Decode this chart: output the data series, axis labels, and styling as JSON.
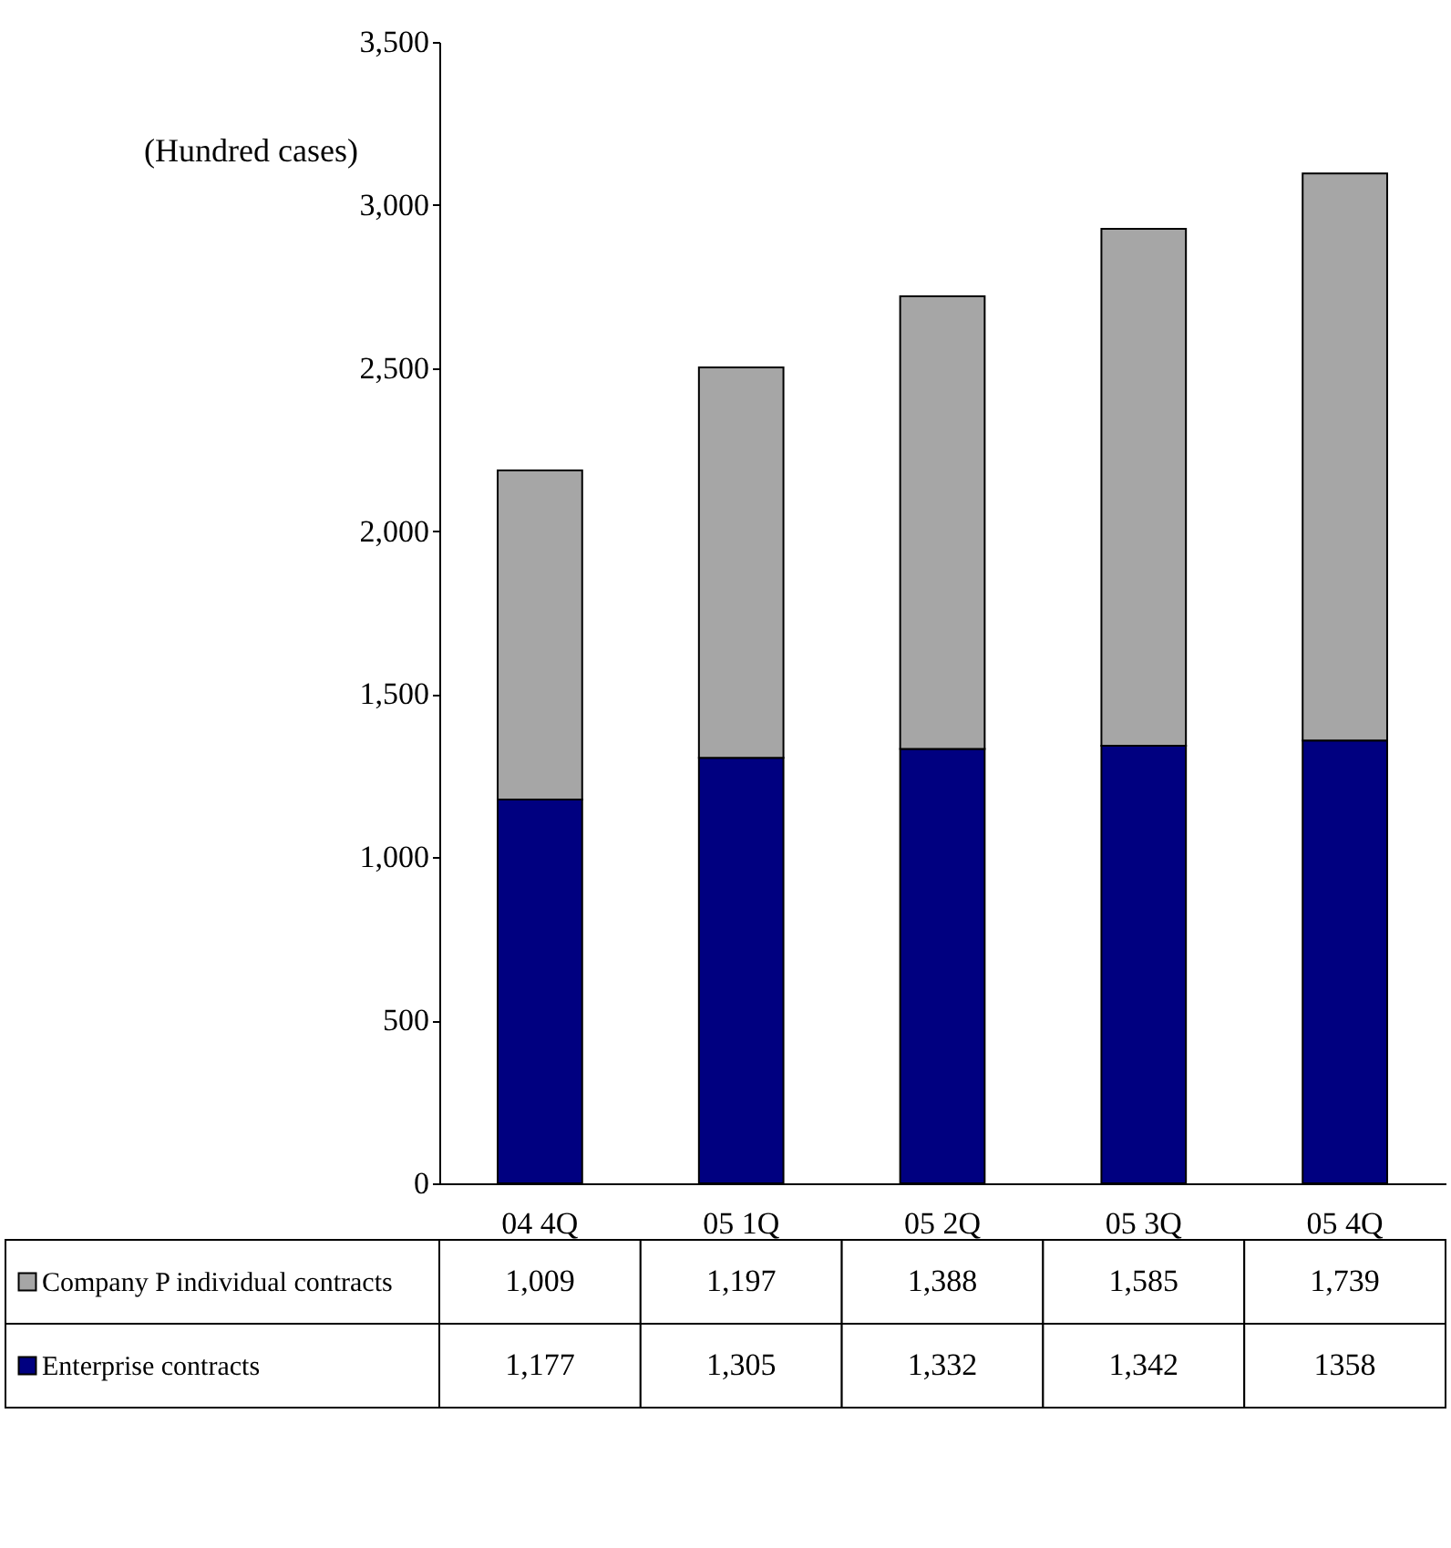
{
  "chart_data": {
    "type": "bar",
    "ylabel": "(Hundred cases)",
    "categories": [
      "04 4Q",
      "05 1Q",
      "05 2Q",
      "05 3Q",
      "05 4Q"
    ],
    "stacked": true,
    "ylim": [
      0,
      3500
    ],
    "yticks": [
      0,
      500,
      {
        "value": 1000,
        "label": "1,000"
      },
      {
        "value": 1500,
        "label": "1,500"
      },
      {
        "value": 2000,
        "label": "2,000"
      },
      {
        "value": 2500,
        "label": "2,500"
      },
      {
        "value": 3000,
        "label": "3,000"
      },
      {
        "value": 3500,
        "label": "3,500"
      }
    ],
    "legend": "bottom",
    "grid": false,
    "series": [
      {
        "name": "Enterprise contracts",
        "color": "#000080",
        "values": [
          1177,
          1305,
          1332,
          1342,
          1358
        ],
        "value_labels": [
          "1,177",
          "1,305",
          "1,332",
          "1,342",
          "1358"
        ]
      },
      {
        "name": "Company P individual contracts",
        "color": "#a6a6a6",
        "values": [
          1009,
          1197,
          1388,
          1585,
          1739
        ],
        "value_labels": [
          "1,009",
          "1,197",
          "1,388",
          "1,585",
          "1,739"
        ]
      }
    ]
  }
}
